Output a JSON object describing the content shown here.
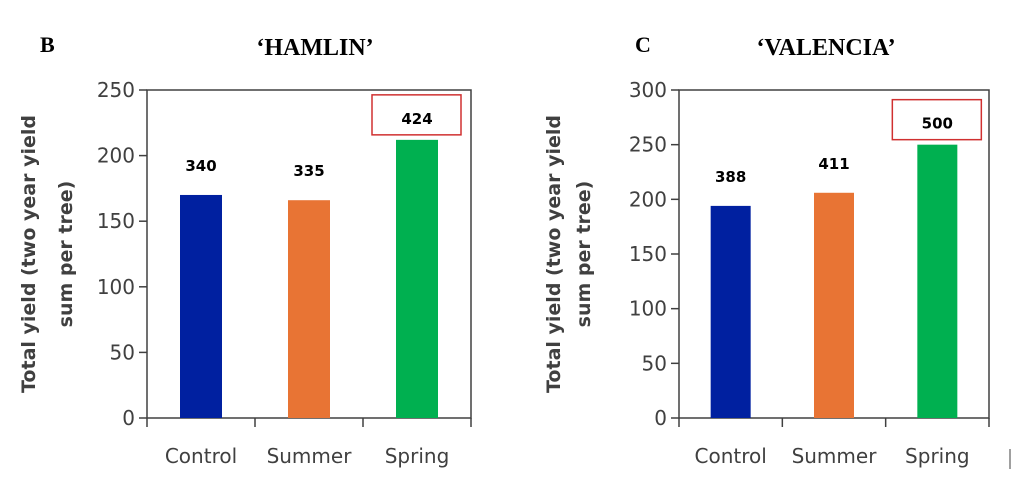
{
  "chart_data": [
    {
      "type": "bar",
      "panel_label": "B",
      "title": "‘HAMLIN’",
      "ylabel_lines": [
        "Total yield (two year yield",
        "sum per tree)"
      ],
      "categories": [
        "Control",
        "Summer",
        "Spring"
      ],
      "values": [
        170,
        166,
        212
      ],
      "data_labels": [
        "340",
        "335",
        "424"
      ],
      "highlighted_index": 2,
      "colors": [
        "#0020a0",
        "#e87434",
        "#00b050"
      ],
      "highlight_color": "#d03030",
      "ylim": [
        0,
        250
      ],
      "yticks": [
        0,
        50,
        100,
        150,
        200,
        250
      ],
      "grid": false
    },
    {
      "type": "bar",
      "panel_label": "C",
      "title": "‘VALENCIA’",
      "ylabel_lines": [
        "Total yield (two year yield",
        "sum per tree)"
      ],
      "categories": [
        "Control",
        "Summer",
        "Spring"
      ],
      "values": [
        194,
        206,
        250
      ],
      "data_labels": [
        "388",
        "411",
        "500"
      ],
      "highlighted_index": 2,
      "colors": [
        "#0020a0",
        "#e87434",
        "#00b050"
      ],
      "highlight_color": "#d03030",
      "ylim": [
        0,
        300
      ],
      "yticks": [
        0,
        50,
        100,
        150,
        200,
        250,
        300
      ],
      "grid": false
    }
  ]
}
